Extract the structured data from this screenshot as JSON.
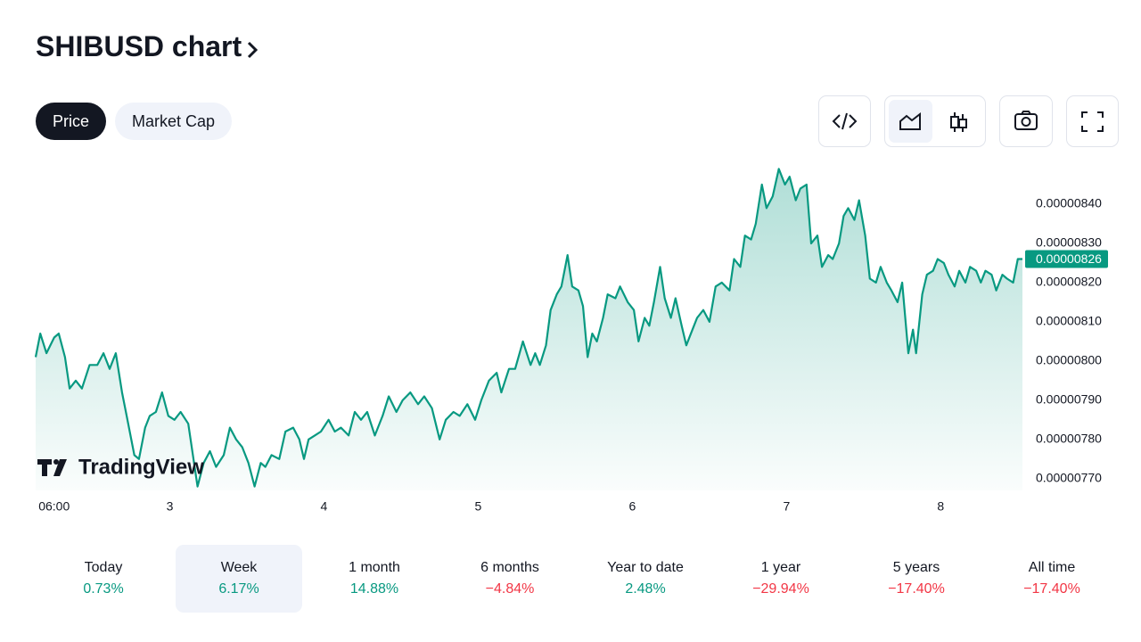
{
  "header": {
    "title": "SHIBUSD chart"
  },
  "tabs": {
    "items": [
      "Price",
      "Market Cap"
    ],
    "active": 0
  },
  "chart_data": {
    "type": "area",
    "color": "#089981",
    "grid": false,
    "x": [
      2.13,
      2.16,
      2.2,
      2.25,
      2.28,
      2.32,
      2.35,
      2.39,
      2.43,
      2.48,
      2.53,
      2.57,
      2.61,
      2.65,
      2.69,
      2.72,
      2.77,
      2.8,
      2.84,
      2.87,
      2.91,
      2.95,
      2.99,
      3.03,
      3.07,
      3.12,
      3.15,
      3.18,
      3.22,
      3.26,
      3.3,
      3.35,
      3.39,
      3.43,
      3.47,
      3.51,
      3.55,
      3.59,
      3.62,
      3.66,
      3.71,
      3.75,
      3.8,
      3.84,
      3.87,
      3.9,
      3.94,
      3.98,
      4.03,
      4.07,
      4.11,
      4.16,
      4.2,
      4.24,
      4.28,
      4.33,
      4.38,
      4.42,
      4.47,
      4.51,
      4.56,
      4.61,
      4.65,
      4.7,
      4.75,
      4.79,
      4.84,
      4.88,
      4.93,
      4.98,
      5.02,
      5.07,
      5.12,
      5.15,
      5.2,
      5.24,
      5.29,
      5.34,
      5.37,
      5.4,
      5.44,
      5.47,
      5.51,
      5.54,
      5.58,
      5.61,
      5.65,
      5.68,
      5.71,
      5.74,
      5.77,
      5.81,
      5.84,
      5.89,
      5.92,
      5.97,
      6.01,
      6.04,
      6.08,
      6.11,
      6.14,
      6.18,
      6.21,
      6.25,
      6.28,
      6.32,
      6.35,
      6.39,
      6.42,
      6.46,
      6.5,
      6.54,
      6.58,
      6.63,
      6.66,
      6.7,
      6.73,
      6.77,
      6.8,
      6.84,
      6.87,
      6.91,
      6.95,
      6.99,
      7.02,
      7.06,
      7.09,
      7.13,
      7.16,
      7.2,
      7.23,
      7.27,
      7.3,
      7.34,
      7.37,
      7.4,
      7.44,
      7.47,
      7.51,
      7.54,
      7.58,
      7.61,
      7.65,
      7.68,
      7.72,
      7.75,
      7.79,
      7.82,
      7.84,
      7.88,
      7.91,
      7.95,
      7.98,
      8.02,
      8.05,
      8.09,
      8.12,
      8.16,
      8.19,
      8.23,
      8.26,
      8.29,
      8.33,
      8.36,
      8.4,
      8.43,
      8.47,
      8.5,
      8.53
    ],
    "values": [
      8.01e-06,
      8.07e-06,
      8.02e-06,
      8.06e-06,
      8.07e-06,
      8.01e-06,
      7.93e-06,
      7.95e-06,
      7.93e-06,
      7.99e-06,
      7.99e-06,
      8.02e-06,
      7.98e-06,
      8.02e-06,
      7.92e-06,
      7.86e-06,
      7.76e-06,
      7.75e-06,
      7.83e-06,
      7.86e-06,
      7.87e-06,
      7.92e-06,
      7.86e-06,
      7.85e-06,
      7.87e-06,
      7.84e-06,
      7.76e-06,
      7.68e-06,
      7.74e-06,
      7.77e-06,
      7.73e-06,
      7.76e-06,
      7.83e-06,
      7.8e-06,
      7.78e-06,
      7.74e-06,
      7.68e-06,
      7.74e-06,
      7.73e-06,
      7.76e-06,
      7.75e-06,
      7.82e-06,
      7.83e-06,
      7.8e-06,
      7.75e-06,
      7.8e-06,
      7.81e-06,
      7.82e-06,
      7.85e-06,
      7.82e-06,
      7.83e-06,
      7.81e-06,
      7.87e-06,
      7.85e-06,
      7.87e-06,
      7.81e-06,
      7.86e-06,
      7.91e-06,
      7.87e-06,
      7.9e-06,
      7.92e-06,
      7.89e-06,
      7.91e-06,
      7.88e-06,
      7.8e-06,
      7.85e-06,
      7.87e-06,
      7.86e-06,
      7.89e-06,
      7.85e-06,
      7.9e-06,
      7.95e-06,
      7.97e-06,
      7.92e-06,
      7.98e-06,
      7.98e-06,
      8.05e-06,
      7.99e-06,
      8.02e-06,
      7.99e-06,
      8.04e-06,
      8.13e-06,
      8.17e-06,
      8.19e-06,
      8.27e-06,
      8.19e-06,
      8.18e-06,
      8.14e-06,
      8.01e-06,
      8.07e-06,
      8.05e-06,
      8.11e-06,
      8.17e-06,
      8.16e-06,
      8.19e-06,
      8.15e-06,
      8.13e-06,
      8.05e-06,
      8.11e-06,
      8.09e-06,
      8.15e-06,
      8.24e-06,
      8.16e-06,
      8.11e-06,
      8.16e-06,
      8.09e-06,
      8.04e-06,
      8.08e-06,
      8.11e-06,
      8.13e-06,
      8.1e-06,
      8.19e-06,
      8.2e-06,
      8.18e-06,
      8.26e-06,
      8.24e-06,
      8.32e-06,
      8.31e-06,
      8.35e-06,
      8.45e-06,
      8.39e-06,
      8.42e-06,
      8.49e-06,
      8.45e-06,
      8.47e-06,
      8.41e-06,
      8.44e-06,
      8.45e-06,
      8.3e-06,
      8.32e-06,
      8.24e-06,
      8.27e-06,
      8.26e-06,
      8.3e-06,
      8.37e-06,
      8.39e-06,
      8.36e-06,
      8.41e-06,
      8.32e-06,
      8.21e-06,
      8.2e-06,
      8.24e-06,
      8.2e-06,
      8.18e-06,
      8.15e-06,
      8.2e-06,
      8.02e-06,
      8.08e-06,
      8.02e-06,
      8.17e-06,
      8.22e-06,
      8.23e-06,
      8.26e-06,
      8.25e-06,
      8.22e-06,
      8.19e-06,
      8.23e-06,
      8.2e-06,
      8.24e-06,
      8.23e-06,
      8.2e-06,
      8.23e-06,
      8.22e-06,
      8.18e-06,
      8.22e-06,
      8.21e-06,
      8.2e-06,
      8.26e-06,
      8.26e-06
    ],
    "xlim": [
      2.13,
      8.53
    ],
    "xticks": [
      {
        "value": 2.25,
        "label": "06:00"
      },
      3,
      4,
      5,
      6,
      7,
      8
    ],
    "ylim": [
      7.67e-06,
      8.5e-06
    ],
    "yticks": [
      {
        "value": 7.7e-06,
        "label": "0.00000770"
      },
      {
        "value": 7.8e-06,
        "label": "0.00000780"
      },
      {
        "value": 7.9e-06,
        "label": "0.00000790"
      },
      {
        "value": 8e-06,
        "label": "0.00000800"
      },
      {
        "value": 8.1e-06,
        "label": "0.00000810"
      },
      {
        "value": 8.2e-06,
        "label": "0.00000820"
      },
      {
        "value": 8.3e-06,
        "label": "0.00000830"
      },
      {
        "value": 8.4e-06,
        "label": "0.00000840"
      }
    ],
    "last_value_label": "0.00000826",
    "watermark": "TradingView"
  },
  "periods": {
    "active": 1,
    "items": [
      {
        "label": "Today",
        "change": "0.73%"
      },
      {
        "label": "Week",
        "change": "6.17%"
      },
      {
        "label": "1 month",
        "change": "14.88%"
      },
      {
        "label": "6 months",
        "change": "−4.84%"
      },
      {
        "label": "Year to date",
        "change": "2.48%"
      },
      {
        "label": "1 year",
        "change": "−29.94%"
      },
      {
        "label": "5 years",
        "change": "−17.40%"
      },
      {
        "label": "All time",
        "change": "−17.40%"
      }
    ]
  }
}
